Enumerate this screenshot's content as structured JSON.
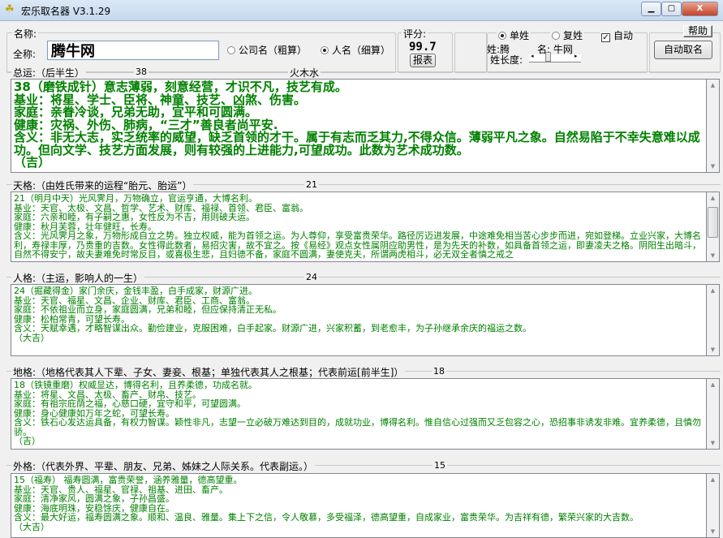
{
  "window": {
    "title": "宏乐取名器 V3.1.29",
    "minimize": "▁",
    "maximize": "▢",
    "close": "X"
  },
  "top": {
    "name_group_label": "名称:",
    "fullname_label": "全称:",
    "fullname_value": "腾牛网",
    "radio_company": "公司名（粗算）",
    "radio_person": "人名（细算）",
    "selected_type": "person",
    "score_label": "评分:",
    "score_value": "99.7",
    "report_button": "报表",
    "radio_single": "单姓",
    "radio_double": "复姓",
    "selected_surname_type": "single",
    "auto_label": "自动",
    "auto_checked": true,
    "surname_label": "姓:腾",
    "given_label": "名: 牛网",
    "surname_length_label": "姓长度:",
    "help_button": "帮助",
    "auto_name_button": "自动取名"
  },
  "sections": [
    {
      "title": "总运:（后半生）",
      "number": "38",
      "element": "火木水",
      "text": "38（磨铁成针）意志薄弱，刻意经营，才识不凡，技艺有成。\n基业：将星、学士、臣将、神童、技艺、凶煞、伤害。\n家庭：亲眷冷谈，兄弟无助，宜平和可圆满。\n健康：灾祸、外伤、肺病，“三才”善良者尚平安.\n含义：非无大志，实乏统率的威望，缺乏首领的才干。属于有志而乏其力,不得众信。薄弱平凡之象。自然易陷于不幸失意难以成功。但向文学、技艺方面发展，则有较强的上进能力,可望成功。此数为艺术成功数。\n（吉）"
    },
    {
      "title": "天格:（由姓氏带来的运程“胎元、胎运”）",
      "number": "21",
      "text": "21（明月中天）光风霁月，万物确立，官运亨通，大博名利。\n基业：天官、太极、文昌、哲学、艺术、财库、福禄、首领、君臣、富翁。\n家庭：六亲和睦，有子嗣之惠，女性反为不吉，用则破夫运。\n健康：秋月芙蓉，壮年健旺，长寿。\n含义：光风霁月之象，万物形成自立之势。独立权威，能为首领之运。为人尊仰，享受富贵荣华。路径厉迈进发展，中途难免相当苦心步步而进，宛如登梯。立业兴家，大博名利，寿禄丰厚，乃贵重的吉数。女性得此数者，易招灾害，故不宜之。按《易经》观点女性属阴应助男性，是为先天的补数，如具备首领之运，即妻凌夫之格。阴阳生出暗斗，自然不得安宁，故夫妻难免时常反目，或喜极生悲，且妇德不备，家庭不圆满，妻使克夫，所谓两虎相斗，必无双全者慎之戒之"
    },
    {
      "title": "人格:（主运，影响人的一生）",
      "number": "24",
      "text": "24（掘藏得金）家门余庆，金钱丰盈，白手成家，财源广进。\n基业：天官、福星、文昌、企业、财库、君臣、工商、富翁。\n家庭：不依祖业而立身，家庭圆满，兄弟和睦，但应保持清正无私。\n健康：松柏常青，可望长寿。\n含义：天赋幸遇，才略智谋出众。勤俭建业，克服困难，白手起家。财源广进，兴家积蓄，到老愈丰，为子孙继承余庆的福运之数。\n（大吉）"
    },
    {
      "title": "地格:（地格代表其人下辈、子女、妻妾、根基；单独代表其人之根基；代表前运[前半生]）",
      "number": "18",
      "text": "18（铁镜重磨）权威显达，博得名利，且养柔德，功成名就。\n基业：将星、文昌、太极、畜产、财帛、技艺。\n家庭：有祖宗庇荫之福，心慈口硬，宜守和平，可望圆满。\n健康：身心健康如万年之蛇，可望长寿。\n含义：铁石心发达运具备，有权力智谋。颖性非凡，志望一立必破万难达到目的，成就功业，博得名利。惟自信心过强而又乏包容之心，恐招事非诱发非难。宜养柔德，且慎勿骄。\n（吉）"
    },
    {
      "title": "外格:（代表外界、平辈、朋友、兄弟、姊妹之人际关系。代表副运。）",
      "number": "15",
      "text": "15（福寿） 福寿圆满，富贵荣誉，涵养雅量，德高望重。\n基业：天官、贵人、福星、官禄、祖基、进田、畜产。\n家庭：清净家风，圆满之象，子孙昌盛。\n健康：海底明珠，安稳馀庆，健康自在。\n含义：最大好运，福寿圆满之象。顺和、温良、雅量。集上下之信，令人敬慕，多受福泽，德高望重，自成家业，富贵荣华。为吉祥有德，繁荣兴家的大吉数。\n（大吉）"
    }
  ]
}
